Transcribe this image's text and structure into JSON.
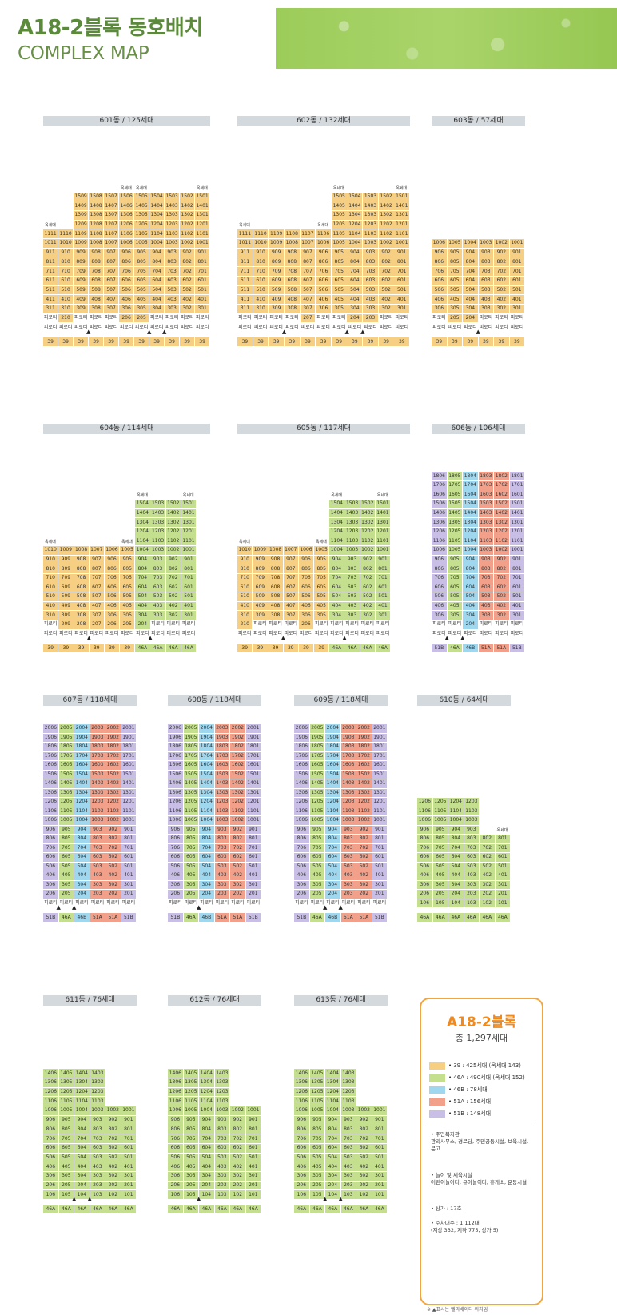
{
  "header": {
    "title": "A18-2블록 동호배치",
    "subtitle": "COMPLEX MAP"
  },
  "colors": {
    "39": "#f6cf82",
    "46A": "#c4e08e",
    "46B": "#9fd7ef",
    "51A": "#f2a089",
    "51B": "#c8bee6"
  },
  "buildings": [
    {
      "title": "601동 / 125세대",
      "top_note": "옥세대",
      "pilotis": "피로티",
      "units": [
        "11",
        "10",
        "9",
        "8",
        "7",
        "6",
        "5",
        "4",
        "3",
        "2",
        "1"
      ],
      "floors": [
        [
          5,
          5,
          11
        ],
        [
          8,
          10,
          11
        ],
        [
          11,
          15,
          15
        ],
        [
          11,
          15,
          15
        ],
        [
          11,
          15,
          15
        ],
        [
          11,
          15,
          15
        ],
        [
          11,
          15,
          15
        ],
        [
          11,
          15,
          15
        ],
        [
          11,
          15,
          15
        ],
        [
          11,
          15,
          15
        ],
        [
          11,
          15,
          15
        ]
      ],
      "top_notes": [
        0,
        5,
        6,
        10
      ],
      "pilotis_floors": [
        3,
        2,
        3,
        3,
        3,
        2,
        2,
        3,
        3,
        3,
        3
      ],
      "types": [
        "39",
        "39",
        "39",
        "39",
        "39",
        "39",
        "39",
        "39",
        "39",
        "39",
        "39"
      ],
      "marks": [
        3,
        7,
        8
      ]
    },
    {
      "title": "602동 / 132세대",
      "top_note": "옥세대",
      "pilotis": "피로티",
      "units": [
        "11",
        "10",
        "9",
        "8",
        "7",
        "6",
        "5",
        "4",
        "3",
        "2",
        "1"
      ],
      "floors": [
        [
          11,
          11,
          11
        ],
        [
          11,
          11,
          11
        ],
        [
          11,
          11,
          11
        ],
        [
          11,
          11,
          11
        ],
        [
          11,
          11,
          11
        ],
        [
          11,
          11,
          11
        ],
        [
          11,
          15,
          15
        ],
        [
          11,
          15,
          15
        ],
        [
          11,
          15,
          15
        ],
        [
          11,
          15,
          15
        ],
        [
          11,
          15,
          15
        ]
      ],
      "top_notes": [
        0,
        5,
        6,
        10
      ],
      "pilotis_floors": [
        3,
        3,
        3,
        3,
        2,
        3,
        3,
        2,
        2,
        3,
        3
      ],
      "types": [
        "39",
        "39",
        "39",
        "39",
        "39",
        "39",
        "39",
        "39",
        "39",
        "39",
        "39"
      ],
      "marks": [
        3,
        7,
        8
      ]
    },
    {
      "title": "603동 / 57세대",
      "top_note": "",
      "pilotis": "피로티",
      "units": [
        "6",
        "5",
        "4",
        "3",
        "2",
        "1"
      ],
      "floors": [
        [
          10,
          10,
          10
        ],
        [
          10,
          10,
          10
        ],
        [
          10,
          10,
          10
        ],
        [
          10,
          10,
          10
        ],
        [
          10,
          10,
          10
        ],
        [
          10,
          10,
          10
        ]
      ],
      "top_notes": [],
      "pilotis_floors": [
        3,
        2,
        2,
        3,
        3,
        3
      ],
      "types": [
        "39",
        "39",
        "39",
        "39",
        "39",
        "39"
      ],
      "marks": [
        3
      ]
    },
    {
      "title": "604동 / 114세대",
      "top_note": "옥세대",
      "pilotis": "피로티",
      "units": [
        "10",
        "9",
        "8",
        "7",
        "6",
        "5",
        "4",
        "3",
        "2",
        "1"
      ],
      "floors": [
        [
          10,
          10,
          10
        ],
        [
          10,
          10,
          10
        ],
        [
          10,
          10,
          10
        ],
        [
          10,
          10,
          10
        ],
        [
          10,
          10,
          10
        ],
        [
          10,
          10,
          10
        ],
        [
          10,
          15,
          15
        ],
        [
          10,
          15,
          15
        ],
        [
          10,
          15,
          15
        ],
        [
          10,
          15,
          15
        ]
      ],
      "top_notes": [
        0,
        5,
        6,
        9
      ],
      "pilotis_floors": [
        3,
        2,
        2,
        2,
        2,
        2,
        2,
        3,
        3,
        3
      ],
      "types": [
        "39",
        "39",
        "39",
        "39",
        "39",
        "39",
        "46A",
        "46A",
        "46A",
        "46A"
      ],
      "marks": [
        3,
        7
      ]
    },
    {
      "title": "605동 / 117세대",
      "top_note": "옥세대",
      "pilotis": "피로티",
      "units": [
        "10",
        "9",
        "8",
        "7",
        "6",
        "5",
        "4",
        "3",
        "2",
        "1"
      ],
      "floors": [
        [
          10,
          10,
          10
        ],
        [
          10,
          10,
          10
        ],
        [
          10,
          10,
          10
        ],
        [
          10,
          10,
          10
        ],
        [
          10,
          10,
          10
        ],
        [
          10,
          10,
          10
        ],
        [
          10,
          15,
          15
        ],
        [
          10,
          15,
          15
        ],
        [
          10,
          15,
          15
        ],
        [
          10,
          15,
          15
        ]
      ],
      "top_notes": [
        0,
        5,
        6,
        9
      ],
      "pilotis_floors": [
        2,
        3,
        3,
        3,
        2,
        3,
        3,
        3,
        3,
        3
      ],
      "types": [
        "39",
        "39",
        "39",
        "39",
        "39",
        "39",
        "46A",
        "46A",
        "46A",
        "46A"
      ],
      "marks": [
        3,
        7
      ]
    },
    {
      "title": "606동 / 106세대",
      "top_note": "",
      "pilotis": "피로티",
      "units": [
        "6",
        "5",
        "4",
        "3",
        "2",
        "1"
      ],
      "floors": [
        [
          18,
          18,
          18
        ],
        [
          18,
          18,
          18
        ],
        [
          18,
          18,
          18
        ],
        [
          18,
          18,
          18
        ],
        [
          18,
          18,
          18
        ],
        [
          18,
          18,
          18
        ]
      ],
      "top_notes": [],
      "pilotis_floors": [
        3,
        3,
        2,
        3,
        3,
        3
      ],
      "types": [
        "51B",
        "46A",
        "46B",
        "51A",
        "51A",
        "51B"
      ],
      "marks": [
        1,
        2
      ]
    },
    {
      "title": "607동 / 118세대",
      "top_note": "",
      "pilotis": "피로티",
      "units": [
        "6",
        "5",
        "4",
        "3",
        "2",
        "1"
      ],
      "floors": [
        [
          20,
          20,
          20
        ],
        [
          20,
          20,
          20
        ],
        [
          20,
          20,
          20
        ],
        [
          20,
          20,
          20
        ],
        [
          20,
          20,
          20
        ],
        [
          20,
          20,
          20
        ]
      ],
      "top_notes": [],
      "pilotis_floors": [
        2,
        2,
        2,
        2,
        2,
        2
      ],
      "types": [
        "51B",
        "46A",
        "46B",
        "51A",
        "51A",
        "51B"
      ],
      "marks": [
        1,
        2
      ]
    },
    {
      "title": "608동 / 118세대",
      "top_note": "",
      "pilotis": "피로티",
      "units": [
        "6",
        "5",
        "4",
        "3",
        "2",
        "1"
      ],
      "floors": [
        [
          20,
          20,
          20
        ],
        [
          20,
          20,
          20
        ],
        [
          20,
          20,
          20
        ],
        [
          20,
          20,
          20
        ],
        [
          20,
          20,
          20
        ],
        [
          20,
          20,
          20
        ]
      ],
      "top_notes": [],
      "pilotis_floors": [
        2,
        2,
        2,
        2,
        2,
        2
      ],
      "types": [
        "51B",
        "46A",
        "46B",
        "51A",
        "51A",
        "51B"
      ],
      "marks": [
        2
      ]
    },
    {
      "title": "609동 / 118세대",
      "top_note": "",
      "pilotis": "피로티",
      "units": [
        "6",
        "5",
        "4",
        "3",
        "2",
        "1"
      ],
      "floors": [
        [
          20,
          20,
          20
        ],
        [
          20,
          20,
          20
        ],
        [
          20,
          20,
          20
        ],
        [
          20,
          20,
          20
        ],
        [
          20,
          20,
          20
        ],
        [
          20,
          20,
          20
        ]
      ],
      "top_notes": [],
      "pilotis_floors": [
        2,
        2,
        2,
        2,
        2,
        2
      ],
      "types": [
        "51B",
        "46A",
        "46B",
        "51A",
        "51A",
        "51B"
      ],
      "marks": [
        2,
        3
      ]
    },
    {
      "title": "610동 / 64세대",
      "top_note": "옥세대",
      "pilotis": "",
      "units": [
        "6",
        "5",
        "4",
        "3",
        "2",
        "1"
      ],
      "floors": [
        [
          12,
          12,
          12
        ],
        [
          12,
          12,
          12
        ],
        [
          12,
          12,
          12
        ],
        [
          12,
          12,
          12
        ],
        [
          8,
          8,
          8
        ],
        [
          8,
          8,
          8
        ]
      ],
      "top_notes": [
        5
      ],
      "pilotis_floors": [],
      "types": [
        "46A",
        "46A",
        "46A",
        "46A",
        "46A",
        "46A"
      ],
      "marks": []
    },
    {
      "title": "611동 / 76세대",
      "top_note": "옥세대",
      "pilotis": "",
      "units": [
        "6",
        "5",
        "4",
        "3",
        "2",
        "1"
      ],
      "floors": [
        [
          14,
          14,
          14
        ],
        [
          14,
          14,
          14
        ],
        [
          14,
          14,
          14
        ],
        [
          14,
          14,
          14
        ],
        [
          10,
          10,
          10
        ],
        [
          10,
          10,
          10
        ]
      ],
      "top_notes": [],
      "pilotis_floors": [],
      "types": [
        "46A",
        "46A",
        "46A",
        "46A",
        "46A",
        "46A"
      ],
      "marks": [
        2,
        3
      ]
    },
    {
      "title": "612동 / 76세대",
      "top_note": "옥세대",
      "pilotis": "",
      "units": [
        "6",
        "5",
        "4",
        "3",
        "2",
        "1"
      ],
      "floors": [
        [
          14,
          14,
          14
        ],
        [
          14,
          14,
          14
        ],
        [
          14,
          14,
          14
        ],
        [
          14,
          14,
          14
        ],
        [
          10,
          10,
          10
        ],
        [
          10,
          10,
          10
        ]
      ],
      "top_notes": [],
      "pilotis_floors": [],
      "types": [
        "46A",
        "46A",
        "46A",
        "46A",
        "46A",
        "46A"
      ],
      "marks": [
        2
      ]
    },
    {
      "title": "613동 / 76세대",
      "top_note": "옥세대",
      "pilotis": "",
      "units": [
        "6",
        "5",
        "4",
        "3",
        "2",
        "1"
      ],
      "floors": [
        [
          14,
          14,
          14
        ],
        [
          14,
          14,
          14
        ],
        [
          14,
          14,
          14
        ],
        [
          14,
          14,
          14
        ],
        [
          10,
          10,
          10
        ],
        [
          10,
          10,
          10
        ]
      ],
      "top_notes": [],
      "pilotis_floors": [],
      "types": [
        "46A",
        "46A",
        "46A",
        "46A",
        "46A",
        "46A"
      ],
      "marks": [
        2,
        3
      ]
    }
  ],
  "legend": {
    "title": "A18-2블록",
    "total": "총 1,297세대",
    "items": [
      {
        "type": "39",
        "label": "• 39 : 425세대 (옥세대 143)"
      },
      {
        "type": "46A",
        "label": "• 46A : 490세대 (옥세대 152)"
      },
      {
        "type": "46B",
        "label": "• 46B : 78세대"
      },
      {
        "type": "51A",
        "label": "• 51A : 156세대"
      },
      {
        "type": "51B",
        "label": "• 51B : 148세대"
      }
    ],
    "info": [
      "• 주민복지관\n관리사무소, 경로당, 주민공동시설, 보육시설, 문고",
      "• 놀이 및 체육시설\n어린이놀이터, 유아놀이터, 휴게소, 운동시설",
      "• 상가 : 17호",
      "• 주차대수 : 1,112대\n(지상 332, 지하 775, 상가 5)"
    ]
  },
  "footnote": "※ ▲표시는 엘리베이터 위치임"
}
